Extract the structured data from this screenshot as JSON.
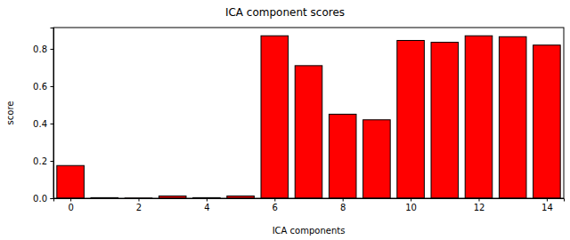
{
  "chart_data": {
    "type": "bar",
    "title": "ICA component scores",
    "x_label": "ICA components",
    "y_label": "score",
    "x": [
      0,
      1,
      2,
      3,
      4,
      5,
      6,
      7,
      8,
      9,
      10,
      11,
      12,
      13,
      14
    ],
    "values": [
      0.175,
      0.003,
      0.001,
      0.012,
      0.003,
      0.012,
      0.87,
      0.71,
      0.45,
      0.42,
      0.845,
      0.835,
      0.87,
      0.865,
      0.82
    ],
    "color": "red",
    "xlim": [
      -0.5,
      14.5
    ],
    "xticks": [
      0,
      2,
      4,
      6,
      8,
      10,
      12,
      14
    ],
    "ylim": [
      0,
      0.914
    ],
    "yticks": [
      {
        "value": 0,
        "label": "0.0"
      },
      0.2,
      0.4,
      0.6,
      0.8
    ],
    "grid": false
  }
}
